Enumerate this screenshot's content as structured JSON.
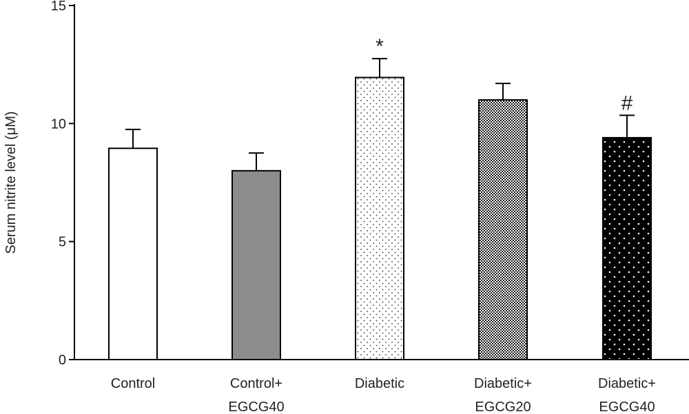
{
  "chart_data": {
    "type": "bar",
    "categories": [
      [
        "Control"
      ],
      [
        "Control+",
        "EGCG40"
      ],
      [
        "Diabetic"
      ],
      [
        "Diabetic+",
        "EGCG20"
      ],
      [
        "Diabetic+",
        "EGCG40"
      ]
    ],
    "series": [
      {
        "values": [
          8.95,
          8.0,
          11.95,
          11.0,
          9.4
        ],
        "errors": [
          0.8,
          0.75,
          0.8,
          0.7,
          0.95
        ]
      }
    ],
    "bar_styles": [
      {
        "fill": "#ffffff",
        "pattern": "none"
      },
      {
        "fill": "#8c8c8c",
        "pattern": "none"
      },
      {
        "fill": "#ffffff",
        "pattern": "sparse-dots"
      },
      {
        "fill": "#ffffff",
        "pattern": "dense-crosshatch"
      },
      {
        "fill": "#000000",
        "pattern": "white-dots"
      }
    ],
    "annotations": [
      "",
      "",
      "*",
      "",
      "#"
    ],
    "ylabel": "Serum nitrite level (μM)",
    "xlabel": "",
    "ylim": [
      0,
      15
    ],
    "yticks": [
      0,
      5,
      10,
      15
    ],
    "grid": false,
    "legend": "none"
  }
}
